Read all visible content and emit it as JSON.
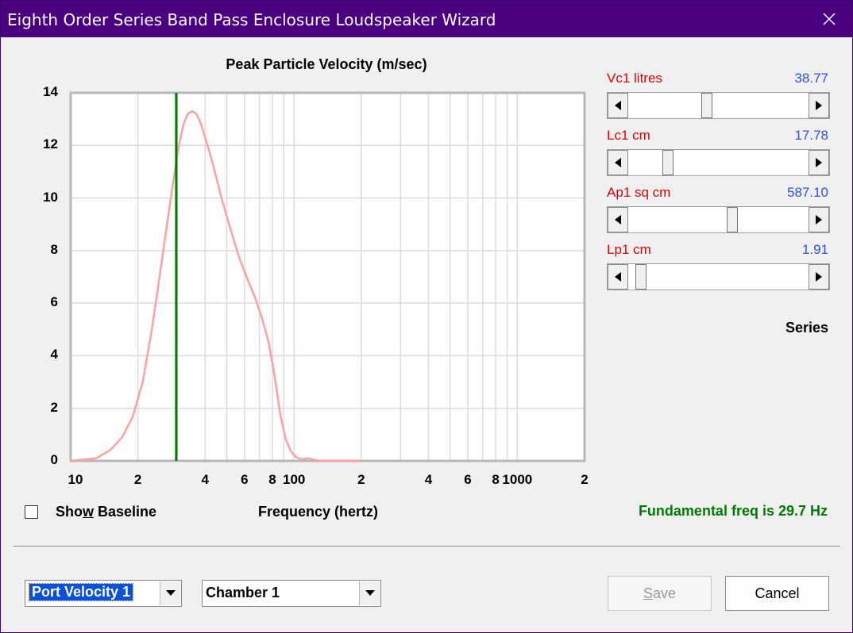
{
  "window": {
    "title": "Eighth Order Series Band Pass Enclosure Loudspeaker Wizard"
  },
  "chart_data": {
    "type": "line",
    "title": "Peak Particle Velocity (m/sec)",
    "xlabel": "Frequency (hertz)",
    "ylabel": "",
    "x_scale": "log",
    "xlim": [
      10,
      2000
    ],
    "ylim": [
      0,
      14
    ],
    "yticks": [
      0,
      2,
      4,
      6,
      8,
      10,
      12,
      14
    ],
    "x_tick_labels": [
      "10",
      "2",
      "4",
      "6",
      "8",
      "100",
      "2",
      "4",
      "6",
      "8",
      "1000",
      "2"
    ],
    "grid": true,
    "series": [
      {
        "color": "#ffa0a0",
        "x": [
          10,
          13,
          15,
          17,
          19,
          21,
          23,
          25,
          27,
          29,
          30.5,
          32,
          33.5,
          35,
          36.5,
          38,
          40,
          43,
          47,
          52,
          57,
          62,
          67,
          72,
          77,
          82,
          87,
          92,
          97,
          102,
          108,
          115,
          122,
          130,
          150,
          200
        ],
        "y": [
          0,
          0.1,
          0.4,
          0.9,
          1.7,
          3.0,
          4.9,
          7.0,
          9.0,
          10.8,
          12.0,
          12.8,
          13.2,
          13.3,
          13.2,
          12.9,
          12.3,
          11.4,
          10.1,
          8.8,
          7.7,
          6.9,
          6.2,
          5.4,
          4.5,
          3.2,
          1.7,
          0.8,
          0.35,
          0.15,
          0.05,
          0.1,
          0.05,
          0,
          0,
          0
        ]
      }
    ],
    "marker_x": 29.7,
    "marker_color": "#007a00"
  },
  "controls": {
    "show_baseline": {
      "label_pre": "Sho",
      "label_u": "w",
      "label_post": " Baseline",
      "checked": false
    },
    "params": [
      {
        "name": "Vc1  litres",
        "value": "38.77",
        "position": 0.43
      },
      {
        "name": "Lc1  cm",
        "value": "17.78",
        "position": 0.2
      },
      {
        "name": "Ap1  sq cm",
        "value": "587.10",
        "position": 0.58
      },
      {
        "name": "Lp1  cm",
        "value": "1.91",
        "position": 0.04
      }
    ],
    "series_label": "Series",
    "fundamental": "Fundamental freq is 29.7 Hz"
  },
  "footer": {
    "plot_select": "Port Velocity 1",
    "chamber_select": "Chamber 1",
    "save_pre": "",
    "save_u": "S",
    "save_post": "ave",
    "cancel_label": "Cancel"
  }
}
